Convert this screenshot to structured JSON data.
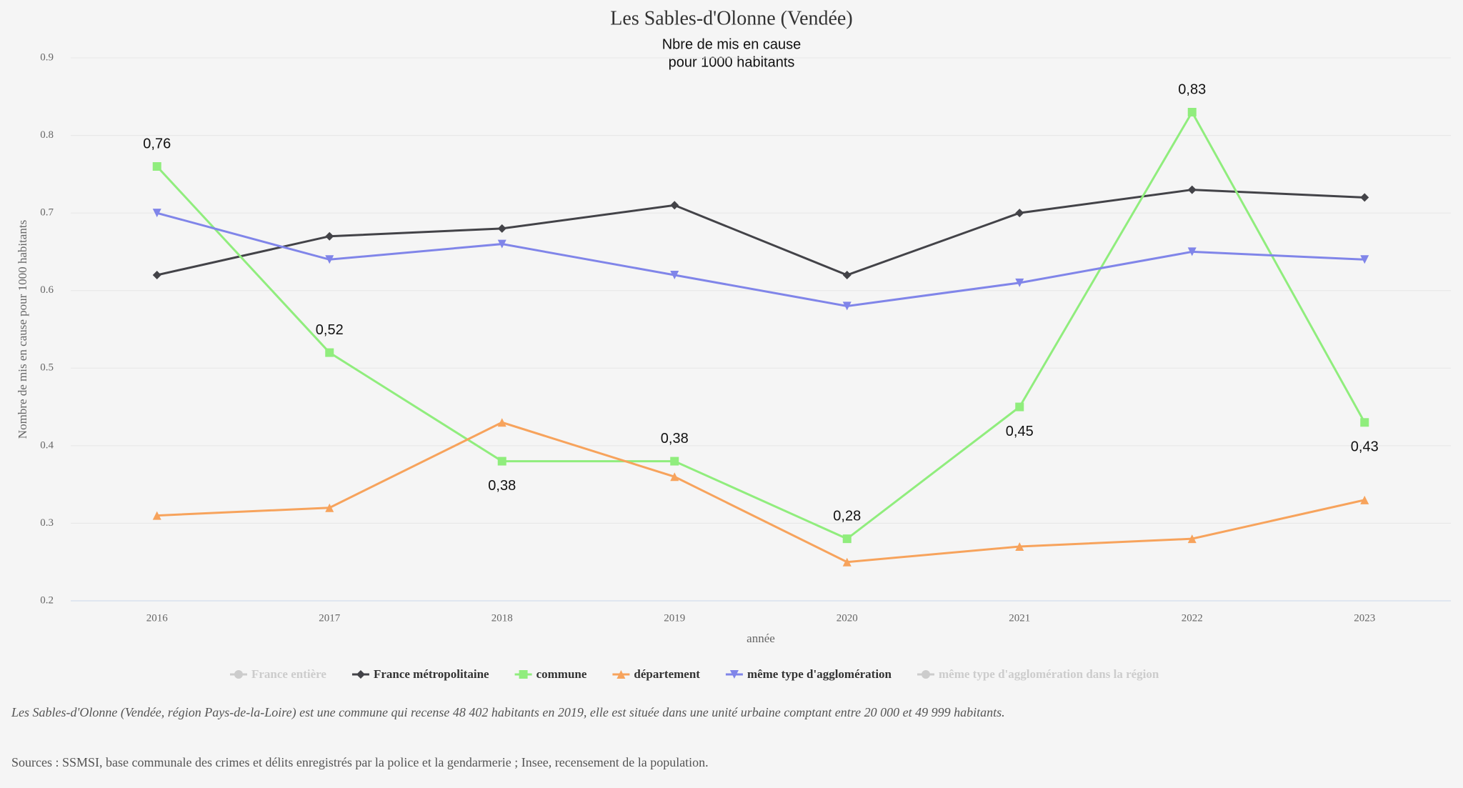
{
  "chart_data": {
    "type": "line",
    "title": "Les Sables-d'Olonne (Vendée)",
    "subtitle": [
      "Nbre de mis en cause",
      "pour 1000 habitants"
    ],
    "y_label": "Nombre de mis en cause pour 1000 habitants",
    "x_label": "année",
    "categories": [
      "2016",
      "2017",
      "2018",
      "2019",
      "2020",
      "2021",
      "2022",
      "2023"
    ],
    "ylim": [
      0.2,
      0.9
    ],
    "yticks": [
      0.2,
      0.3,
      0.4,
      0.5,
      0.6,
      0.7,
      0.8,
      0.9
    ],
    "grid": true,
    "series": [
      {
        "name": "France entière",
        "color": "#cccccc",
        "visible": false,
        "marker": "circle",
        "values": [
          null,
          null,
          null,
          null,
          null,
          null,
          null,
          null
        ]
      },
      {
        "name": "France métropolitaine",
        "color": "#434348",
        "visible": true,
        "marker": "diamond",
        "values": [
          0.62,
          0.67,
          0.68,
          0.71,
          0.62,
          0.7,
          0.73,
          0.72
        ]
      },
      {
        "name": "commune",
        "color": "#90ed7d",
        "visible": true,
        "marker": "square",
        "values": [
          0.76,
          0.52,
          0.38,
          0.38,
          0.28,
          0.45,
          0.83,
          0.43
        ],
        "value_labels": [
          "0,76",
          "0,52",
          "0,38",
          "0,38",
          "0,28",
          "0,45",
          "0,83",
          "0,43"
        ]
      },
      {
        "name": "département",
        "color": "#f7a35c",
        "visible": true,
        "marker": "triangle",
        "values": [
          0.31,
          0.32,
          0.43,
          0.36,
          0.25,
          0.27,
          0.28,
          0.33
        ]
      },
      {
        "name": "même type d'agglomération",
        "color": "#8085e9",
        "visible": true,
        "marker": "triangle-down",
        "values": [
          0.7,
          0.64,
          0.66,
          0.62,
          0.58,
          0.61,
          0.65,
          0.64
        ]
      },
      {
        "name": "même type d'agglomération dans la région",
        "color": "#cccccc",
        "visible": false,
        "marker": "circle",
        "values": [
          null,
          null,
          null,
          null,
          null,
          null,
          null,
          null
        ]
      }
    ],
    "note": "Les Sables-d'Olonne (Vendée, région Pays-de-la-Loire) est une commune qui recense 48 402 habitants en 2019, elle est située dans une unité urbaine comptant entre 20 000 et 49 999 habitants.",
    "source": "Sources : SSMSI, base communale des crimes et délits enregistrés par la police et la gendarmerie ; Insee, recensement de la population."
  }
}
